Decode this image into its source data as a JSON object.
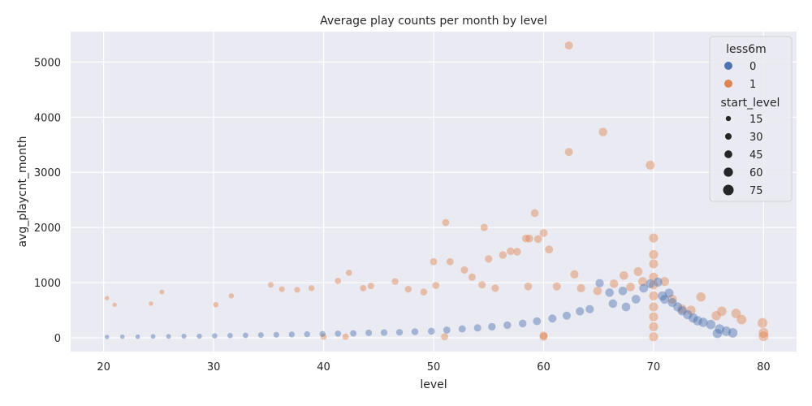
{
  "chart_data": {
    "type": "scatter",
    "title": "Average play counts per month by level",
    "xlabel": "level",
    "ylabel": "avg_playcnt_month",
    "xlim": [
      17,
      83
    ],
    "ylim": [
      -250,
      5550
    ],
    "xticks": [
      20,
      30,
      40,
      50,
      60,
      70,
      80
    ],
    "yticks": [
      0,
      1000,
      2000,
      3000,
      4000,
      5000
    ],
    "grid": true,
    "legend_placement": "top-right",
    "hue": {
      "title": "less6m",
      "entries": [
        {
          "label": "0",
          "color": "#4c72b0"
        },
        {
          "label": "1",
          "color": "#dd8452"
        }
      ]
    },
    "size": {
      "title": "start_level",
      "entries": [
        {
          "label": "15",
          "value": 15
        },
        {
          "label": "30",
          "value": 30
        },
        {
          "label": "45",
          "value": 45
        },
        {
          "label": "60",
          "value": 60
        },
        {
          "label": "75",
          "value": 75
        }
      ]
    },
    "series": [
      {
        "name": "1",
        "points": [
          [
            62.3,
            5300,
            60
          ],
          [
            65.4,
            3730,
            65
          ],
          [
            62.3,
            3370,
            60
          ],
          [
            69.7,
            3130,
            68
          ],
          [
            59.2,
            2260,
            58
          ],
          [
            60.0,
            1900,
            58
          ],
          [
            51.1,
            2090,
            50
          ],
          [
            54.6,
            2000,
            52
          ],
          [
            58.4,
            1800,
            58
          ],
          [
            58.7,
            1800,
            58
          ],
          [
            59.5,
            1790,
            58
          ],
          [
            60.5,
            1600,
            60
          ],
          [
            70.0,
            1810,
            70
          ],
          [
            70.0,
            1510,
            70
          ],
          [
            70.0,
            1340,
            70
          ],
          [
            70.0,
            1100,
            70
          ],
          [
            70.0,
            960,
            70
          ],
          [
            70.0,
            760,
            70
          ],
          [
            70.0,
            560,
            70
          ],
          [
            70.0,
            380,
            70
          ],
          [
            70.0,
            200,
            70
          ],
          [
            70.0,
            20,
            70
          ],
          [
            68.6,
            1200,
            68
          ],
          [
            69.0,
            1020,
            68
          ],
          [
            67.9,
            920,
            66
          ],
          [
            50.0,
            1380,
            50
          ],
          [
            51.5,
            1380,
            50
          ],
          [
            52.8,
            1230,
            52
          ],
          [
            53.5,
            1100,
            52
          ],
          [
            55.0,
            1430,
            54
          ],
          [
            56.3,
            1500,
            55
          ],
          [
            57.0,
            1570,
            56
          ],
          [
            57.6,
            1560,
            56
          ],
          [
            41.3,
            1030,
            40
          ],
          [
            42.3,
            1180,
            40
          ],
          [
            46.5,
            1020,
            45
          ],
          [
            35.2,
            960,
            35
          ],
          [
            25.3,
            830,
            25
          ],
          [
            49.1,
            830,
            48
          ],
          [
            50.2,
            950,
            50
          ],
          [
            54.4,
            960,
            52
          ],
          [
            58.6,
            930,
            57
          ],
          [
            61.2,
            930,
            60
          ],
          [
            63.4,
            900,
            62
          ],
          [
            62.8,
            1150,
            62
          ],
          [
            64.9,
            850,
            64
          ],
          [
            60.0,
            20,
            60
          ],
          [
            60.0,
            40,
            60
          ],
          [
            51.0,
            20,
            50
          ],
          [
            40.0,
            20,
            40
          ],
          [
            42.0,
            20,
            42
          ],
          [
            76.2,
            480,
            75
          ],
          [
            77.5,
            440,
            76
          ],
          [
            78.0,
            330,
            76
          ],
          [
            79.9,
            270,
            78
          ],
          [
            80.0,
            90,
            78
          ],
          [
            80.0,
            30,
            78
          ],
          [
            75.7,
            400,
            74
          ],
          [
            74.3,
            740,
            73
          ],
          [
            73.4,
            500,
            72
          ],
          [
            72.6,
            520,
            72
          ],
          [
            71.0,
            1020,
            70
          ],
          [
            71.7,
            700,
            70
          ],
          [
            20.3,
            720,
            20
          ],
          [
            21.0,
            600,
            20
          ],
          [
            24.3,
            620,
            22
          ],
          [
            30.2,
            600,
            30
          ],
          [
            31.6,
            760,
            30
          ],
          [
            36.2,
            880,
            35
          ],
          [
            37.6,
            870,
            36
          ],
          [
            38.9,
            900,
            38
          ],
          [
            43.6,
            900,
            42
          ],
          [
            44.3,
            940,
            43
          ],
          [
            47.7,
            880,
            46
          ],
          [
            55.6,
            900,
            54
          ],
          [
            66.4,
            980,
            64
          ],
          [
            67.3,
            1130,
            66
          ]
        ]
      },
      {
        "name": "0",
        "points": [
          [
            65.1,
            990,
            62
          ],
          [
            66.0,
            820,
            64
          ],
          [
            67.2,
            850,
            66
          ],
          [
            69.1,
            900,
            68
          ],
          [
            69.7,
            980,
            68
          ],
          [
            70.4,
            1010,
            70
          ],
          [
            70.8,
            760,
            70
          ],
          [
            71.4,
            810,
            70
          ],
          [
            71.0,
            700,
            70
          ],
          [
            71.7,
            640,
            70
          ],
          [
            72.2,
            560,
            70
          ],
          [
            72.6,
            490,
            72
          ],
          [
            73.1,
            420,
            72
          ],
          [
            73.6,
            360,
            72
          ],
          [
            74.0,
            310,
            73
          ],
          [
            74.5,
            280,
            73
          ],
          [
            75.2,
            240,
            74
          ],
          [
            76.0,
            160,
            75
          ],
          [
            76.6,
            120,
            75
          ],
          [
            77.2,
            90,
            75
          ],
          [
            75.8,
            80,
            74
          ],
          [
            68.4,
            700,
            66
          ],
          [
            67.5,
            560,
            66
          ],
          [
            66.3,
            620,
            64
          ],
          [
            64.2,
            520,
            62
          ],
          [
            63.3,
            480,
            62
          ],
          [
            62.1,
            400,
            60
          ],
          [
            60.8,
            350,
            60
          ],
          [
            59.4,
            300,
            58
          ],
          [
            58.1,
            260,
            56
          ],
          [
            56.7,
            230,
            55
          ],
          [
            55.3,
            200,
            54
          ],
          [
            54.0,
            180,
            52
          ],
          [
            52.6,
            160,
            50
          ],
          [
            51.2,
            140,
            50
          ],
          [
            49.8,
            120,
            48
          ],
          [
            48.3,
            110,
            47
          ],
          [
            46.9,
            100,
            45
          ],
          [
            45.5,
            95,
            44
          ],
          [
            44.1,
            90,
            43
          ],
          [
            42.7,
            80,
            42
          ],
          [
            41.3,
            75,
            40
          ],
          [
            39.9,
            70,
            38
          ],
          [
            38.5,
            65,
            37
          ],
          [
            37.1,
            60,
            36
          ],
          [
            35.7,
            55,
            35
          ],
          [
            34.3,
            50,
            34
          ],
          [
            32.9,
            45,
            32
          ],
          [
            31.5,
            40,
            30
          ],
          [
            30.1,
            35,
            30
          ],
          [
            28.7,
            30,
            28
          ],
          [
            27.3,
            30,
            26
          ],
          [
            25.9,
            25,
            25
          ],
          [
            24.5,
            25,
            24
          ],
          [
            23.1,
            20,
            22
          ],
          [
            21.7,
            20,
            21
          ],
          [
            20.3,
            15,
            20
          ]
        ]
      }
    ]
  }
}
